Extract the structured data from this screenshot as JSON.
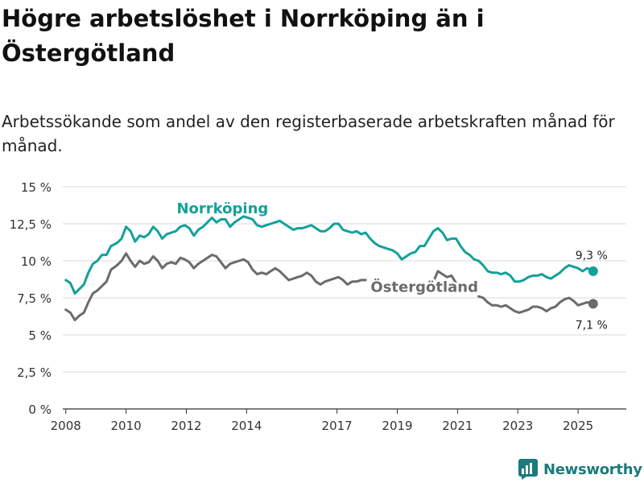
{
  "header": {
    "title": "Högre arbetslöshet i Norrköping än i Östergötland",
    "subtitle": "Arbetssökande som andel av den registerbaserade arbetskraften månad för månad."
  },
  "brand": {
    "name": "Newsworthy",
    "icon": "newsworthy-logo-icon",
    "color": "#1b7a7d"
  },
  "chart_data": {
    "type": "line",
    "title": "Högre arbetslöshet i Norrköping än i Östergötland",
    "subtitle": "Arbetssökande som andel av den registerbaserade arbetskraften månad för månad.",
    "xlabel": "",
    "ylabel": "",
    "xlim": [
      2007.9,
      2026.6
    ],
    "ylim": [
      0,
      15
    ],
    "grid": true,
    "x_ticks": [
      {
        "value": 2008,
        "label": "2008"
      },
      {
        "value": 2010,
        "label": "2010"
      },
      {
        "value": 2012,
        "label": "2012"
      },
      {
        "value": 2014,
        "label": "2014"
      },
      {
        "value": 2017,
        "label": "2017"
      },
      {
        "value": 2019,
        "label": "2019"
      },
      {
        "value": 2021,
        "label": "2021"
      },
      {
        "value": 2023,
        "label": "2023"
      },
      {
        "value": 2025,
        "label": "2025"
      }
    ],
    "y_ticks": [
      {
        "value": 0,
        "label": "0 %"
      },
      {
        "value": 2.5,
        "label": "2,5 %"
      },
      {
        "value": 5,
        "label": "5 %"
      },
      {
        "value": 7.5,
        "label": "7,5 %"
      },
      {
        "value": 10,
        "label": "10 %"
      },
      {
        "value": 12.5,
        "label": "12,5 %"
      },
      {
        "value": 15,
        "label": "15 %"
      }
    ],
    "series": [
      {
        "name": "Norrköping",
        "color": "#12a19a",
        "end_label": "9,3 %",
        "points": [
          [
            2008.0,
            8.7
          ],
          [
            2008.15,
            8.5
          ],
          [
            2008.3,
            7.8
          ],
          [
            2008.45,
            8.1
          ],
          [
            2008.6,
            8.4
          ],
          [
            2008.75,
            9.2
          ],
          [
            2008.9,
            9.8
          ],
          [
            2009.05,
            10.0
          ],
          [
            2009.2,
            10.4
          ],
          [
            2009.35,
            10.4
          ],
          [
            2009.5,
            11.0
          ],
          [
            2009.7,
            11.2
          ],
          [
            2009.85,
            11.5
          ],
          [
            2010.0,
            12.3
          ],
          [
            2010.15,
            12.0
          ],
          [
            2010.3,
            11.3
          ],
          [
            2010.45,
            11.7
          ],
          [
            2010.6,
            11.6
          ],
          [
            2010.75,
            11.8
          ],
          [
            2010.9,
            12.3
          ],
          [
            2011.05,
            12.0
          ],
          [
            2011.2,
            11.5
          ],
          [
            2011.35,
            11.8
          ],
          [
            2011.5,
            11.9
          ],
          [
            2011.65,
            12.0
          ],
          [
            2011.8,
            12.3
          ],
          [
            2011.95,
            12.4
          ],
          [
            2012.1,
            12.2
          ],
          [
            2012.25,
            11.7
          ],
          [
            2012.4,
            12.1
          ],
          [
            2012.55,
            12.3
          ],
          [
            2012.7,
            12.6
          ],
          [
            2012.85,
            12.9
          ],
          [
            2013.0,
            12.6
          ],
          [
            2013.15,
            12.8
          ],
          [
            2013.3,
            12.8
          ],
          [
            2013.45,
            12.3
          ],
          [
            2013.6,
            12.6
          ],
          [
            2013.75,
            12.8
          ],
          [
            2013.9,
            13.0
          ],
          [
            2014.05,
            12.9
          ],
          [
            2014.2,
            12.8
          ],
          [
            2014.35,
            12.4
          ],
          [
            2014.5,
            12.3
          ],
          [
            2014.65,
            12.4
          ],
          [
            2014.8,
            12.5
          ],
          [
            2014.95,
            12.6
          ],
          [
            2015.1,
            12.7
          ],
          [
            2015.25,
            12.5
          ],
          [
            2015.4,
            12.3
          ],
          [
            2015.55,
            12.1
          ],
          [
            2015.7,
            12.2
          ],
          [
            2015.85,
            12.2
          ],
          [
            2016.0,
            12.3
          ],
          [
            2016.15,
            12.4
          ],
          [
            2016.3,
            12.2
          ],
          [
            2016.45,
            12.0
          ],
          [
            2016.6,
            12.0
          ],
          [
            2016.75,
            12.2
          ],
          [
            2016.9,
            12.5
          ],
          [
            2017.05,
            12.5
          ],
          [
            2017.2,
            12.1
          ],
          [
            2017.35,
            12.0
          ],
          [
            2017.5,
            11.9
          ],
          [
            2017.65,
            12.0
          ],
          [
            2017.8,
            11.8
          ],
          [
            2017.95,
            11.9
          ],
          [
            2018.1,
            11.5
          ],
          [
            2018.25,
            11.2
          ],
          [
            2018.4,
            11.0
          ],
          [
            2018.55,
            10.9
          ],
          [
            2018.7,
            10.8
          ],
          [
            2018.85,
            10.7
          ],
          [
            2019.0,
            10.5
          ],
          [
            2019.15,
            10.1
          ],
          [
            2019.3,
            10.3
          ],
          [
            2019.45,
            10.5
          ],
          [
            2019.6,
            10.6
          ],
          [
            2019.75,
            11.0
          ],
          [
            2019.9,
            11.0
          ],
          [
            2020.05,
            11.5
          ],
          [
            2020.2,
            12.0
          ],
          [
            2020.35,
            12.2
          ],
          [
            2020.5,
            11.9
          ],
          [
            2020.65,
            11.4
          ],
          [
            2020.8,
            11.5
          ],
          [
            2020.95,
            11.5
          ],
          [
            2021.1,
            11.0
          ],
          [
            2021.25,
            10.6
          ],
          [
            2021.4,
            10.4
          ],
          [
            2021.55,
            10.1
          ],
          [
            2021.7,
            10.0
          ],
          [
            2021.85,
            9.7
          ],
          [
            2022.0,
            9.3
          ],
          [
            2022.15,
            9.2
          ],
          [
            2022.3,
            9.2
          ],
          [
            2022.45,
            9.1
          ],
          [
            2022.6,
            9.2
          ],
          [
            2022.75,
            9.0
          ],
          [
            2022.9,
            8.6
          ],
          [
            2023.05,
            8.6
          ],
          [
            2023.2,
            8.7
          ],
          [
            2023.35,
            8.9
          ],
          [
            2023.5,
            9.0
          ],
          [
            2023.65,
            9.0
          ],
          [
            2023.8,
            9.1
          ],
          [
            2023.95,
            8.9
          ],
          [
            2024.1,
            8.8
          ],
          [
            2024.25,
            9.0
          ],
          [
            2024.4,
            9.2
          ],
          [
            2024.55,
            9.5
          ],
          [
            2024.7,
            9.7
          ],
          [
            2024.85,
            9.6
          ],
          [
            2025.0,
            9.5
          ],
          [
            2025.15,
            9.3
          ],
          [
            2025.3,
            9.5
          ],
          [
            2025.5,
            9.3
          ]
        ]
      },
      {
        "name": "Östergötland",
        "color": "#6b6b6b",
        "end_label": "7,1 %",
        "segments": [
          [
            [
              2008.0,
              6.7
            ],
            [
              2008.15,
              6.5
            ],
            [
              2008.3,
              6.0
            ],
            [
              2008.45,
              6.3
            ],
            [
              2008.6,
              6.5
            ],
            [
              2008.75,
              7.2
            ],
            [
              2008.9,
              7.8
            ],
            [
              2009.05,
              8.0
            ],
            [
              2009.2,
              8.3
            ],
            [
              2009.35,
              8.6
            ],
            [
              2009.5,
              9.4
            ],
            [
              2009.7,
              9.7
            ],
            [
              2009.85,
              10.0
            ],
            [
              2010.0,
              10.5
            ],
            [
              2010.15,
              10.0
            ],
            [
              2010.3,
              9.6
            ],
            [
              2010.45,
              10.0
            ],
            [
              2010.6,
              9.8
            ],
            [
              2010.75,
              9.9
            ],
            [
              2010.9,
              10.3
            ],
            [
              2011.05,
              10.0
            ],
            [
              2011.2,
              9.5
            ],
            [
              2011.35,
              9.8
            ],
            [
              2011.5,
              9.9
            ],
            [
              2011.65,
              9.8
            ],
            [
              2011.8,
              10.2
            ],
            [
              2011.95,
              10.1
            ],
            [
              2012.1,
              9.9
            ],
            [
              2012.25,
              9.5
            ],
            [
              2012.4,
              9.8
            ],
            [
              2012.55,
              10.0
            ],
            [
              2012.7,
              10.2
            ],
            [
              2012.85,
              10.4
            ],
            [
              2013.0,
              10.3
            ],
            [
              2013.15,
              9.9
            ],
            [
              2013.3,
              9.5
            ],
            [
              2013.45,
              9.8
            ],
            [
              2013.6,
              9.9
            ],
            [
              2013.75,
              10.0
            ],
            [
              2013.9,
              10.1
            ],
            [
              2014.05,
              9.9
            ],
            [
              2014.2,
              9.4
            ],
            [
              2014.35,
              9.1
            ],
            [
              2014.5,
              9.2
            ],
            [
              2014.65,
              9.1
            ],
            [
              2014.8,
              9.3
            ],
            [
              2014.95,
              9.5
            ],
            [
              2015.1,
              9.3
            ],
            [
              2015.25,
              9.0
            ],
            [
              2015.4,
              8.7
            ],
            [
              2015.55,
              8.8
            ],
            [
              2015.7,
              8.9
            ],
            [
              2015.85,
              9.0
            ],
            [
              2016.0,
              9.2
            ],
            [
              2016.15,
              9.0
            ],
            [
              2016.3,
              8.6
            ],
            [
              2016.45,
              8.4
            ],
            [
              2016.6,
              8.6
            ],
            [
              2016.75,
              8.7
            ],
            [
              2016.9,
              8.8
            ],
            [
              2017.05,
              8.9
            ],
            [
              2017.2,
              8.7
            ],
            [
              2017.35,
              8.4
            ],
            [
              2017.5,
              8.6
            ],
            [
              2017.65,
              8.6
            ],
            [
              2017.8,
              8.7
            ],
            [
              2017.95,
              8.7
            ]
          ],
          [
            [
              2020.2,
              8.6
            ],
            [
              2020.35,
              9.3
            ],
            [
              2020.5,
              9.1
            ],
            [
              2020.65,
              8.9
            ],
            [
              2020.8,
              9.0
            ],
            [
              2020.95,
              8.5
            ]
          ],
          [
            [
              2021.7,
              7.6
            ],
            [
              2021.85,
              7.5
            ],
            [
              2022.0,
              7.2
            ],
            [
              2022.15,
              7.0
            ],
            [
              2022.3,
              7.0
            ],
            [
              2022.45,
              6.9
            ],
            [
              2022.6,
              7.0
            ],
            [
              2022.75,
              6.8
            ],
            [
              2022.9,
              6.6
            ],
            [
              2023.05,
              6.5
            ],
            [
              2023.2,
              6.6
            ],
            [
              2023.35,
              6.7
            ],
            [
              2023.5,
              6.9
            ],
            [
              2023.65,
              6.9
            ],
            [
              2023.8,
              6.8
            ],
            [
              2023.95,
              6.6
            ],
            [
              2024.1,
              6.8
            ],
            [
              2024.25,
              6.9
            ],
            [
              2024.4,
              7.2
            ],
            [
              2024.55,
              7.4
            ],
            [
              2024.7,
              7.5
            ],
            [
              2024.85,
              7.3
            ],
            [
              2025.0,
              7.0
            ],
            [
              2025.15,
              7.1
            ],
            [
              2025.3,
              7.2
            ],
            [
              2025.5,
              7.1
            ]
          ]
        ]
      }
    ],
    "annotations": [
      {
        "text": "Norrköping",
        "x": 2013.2,
        "y": 13.2,
        "series": "Norrköping"
      },
      {
        "text": "Östergötland",
        "x": 2019.9,
        "y": 7.9,
        "series": "Östergötland"
      }
    ]
  }
}
